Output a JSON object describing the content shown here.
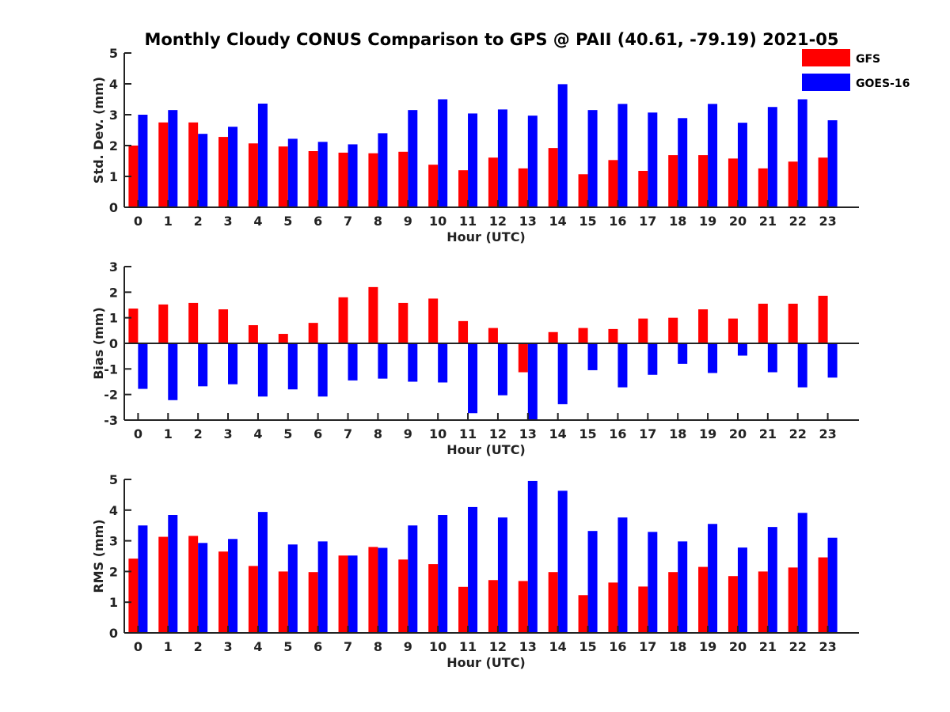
{
  "title": "Monthly Cloudy CONUS Comparison to GPS @ PAII (40.61, -79.19) 2021-05",
  "legend": {
    "placement": "top-right",
    "items": [
      {
        "name": "GFS",
        "color": "#ff0000"
      },
      {
        "name": "GOES-16",
        "color": "#0000ff"
      }
    ]
  },
  "chart_data": [
    {
      "type": "bar",
      "xlabel": "Hour (UTC)",
      "ylabel": "Std. Dev. (mm)",
      "ylim": [
        0,
        5
      ],
      "yticks": [
        0,
        1,
        2,
        3,
        4,
        5
      ],
      "categories": [
        "0",
        "1",
        "2",
        "3",
        "4",
        "5",
        "6",
        "7",
        "8",
        "9",
        "10",
        "11",
        "12",
        "13",
        "14",
        "15",
        "16",
        "17",
        "18",
        "19",
        "20",
        "21",
        "22",
        "23"
      ],
      "series": [
        {
          "name": "GFS",
          "color": "#ff0000",
          "values": [
            2.0,
            2.75,
            2.75,
            2.28,
            2.07,
            1.97,
            1.82,
            1.77,
            1.75,
            1.8,
            1.38,
            1.2,
            1.61,
            1.26,
            1.92,
            1.07,
            1.53,
            1.18,
            1.69,
            1.69,
            1.58,
            1.26,
            1.48,
            1.61
          ]
        },
        {
          "name": "GOES-16",
          "color": "#0000ff",
          "values": [
            3.0,
            3.15,
            2.38,
            2.61,
            3.36,
            2.22,
            2.12,
            2.04,
            2.4,
            3.15,
            3.5,
            3.04,
            3.17,
            2.97,
            3.99,
            3.15,
            3.35,
            3.07,
            2.89,
            3.35,
            2.74,
            3.25,
            3.5,
            2.82
          ]
        }
      ]
    },
    {
      "type": "bar",
      "xlabel": "Hour (UTC)",
      "ylabel": "Bias (mm)",
      "ylim": [
        -3,
        3
      ],
      "yticks": [
        -3,
        -2,
        -1,
        0,
        1,
        2,
        3
      ],
      "categories": [
        "0",
        "1",
        "2",
        "3",
        "4",
        "5",
        "6",
        "7",
        "8",
        "9",
        "10",
        "11",
        "12",
        "13",
        "14",
        "15",
        "16",
        "17",
        "18",
        "19",
        "20",
        "21",
        "22",
        "23"
      ],
      "series": [
        {
          "name": "GFS",
          "color": "#ff0000",
          "values": [
            1.36,
            1.52,
            1.58,
            1.33,
            0.71,
            0.37,
            0.8,
            1.8,
            2.2,
            1.58,
            1.75,
            0.87,
            0.6,
            -1.13,
            0.44,
            0.6,
            0.56,
            0.97,
            1.0,
            1.33,
            0.97,
            1.55,
            1.55,
            1.86
          ]
        },
        {
          "name": "GOES-16",
          "color": "#0000ff",
          "values": [
            -1.78,
            -2.22,
            -1.68,
            -1.6,
            -2.08,
            -1.8,
            -2.08,
            -1.45,
            -1.38,
            -1.5,
            -1.53,
            -2.73,
            -2.03,
            -3.0,
            -2.38,
            -1.05,
            -1.72,
            -1.23,
            -0.8,
            -1.16,
            -0.48,
            -1.13,
            -1.72,
            -1.34
          ]
        }
      ]
    },
    {
      "type": "bar",
      "xlabel": "Hour (UTC)",
      "ylabel": "RMS (mm)",
      "ylim": [
        0,
        5
      ],
      "yticks": [
        0,
        1,
        2,
        3,
        4,
        5
      ],
      "categories": [
        "0",
        "1",
        "2",
        "3",
        "4",
        "5",
        "6",
        "7",
        "8",
        "9",
        "10",
        "11",
        "12",
        "13",
        "14",
        "15",
        "16",
        "17",
        "18",
        "19",
        "20",
        "21",
        "22",
        "23"
      ],
      "series": [
        {
          "name": "GFS",
          "color": "#ff0000",
          "values": [
            2.42,
            3.13,
            3.16,
            2.65,
            2.18,
            2.0,
            1.98,
            2.52,
            2.8,
            2.39,
            2.24,
            1.5,
            1.72,
            1.69,
            1.98,
            1.23,
            1.64,
            1.51,
            1.98,
            2.15,
            1.85,
            2.0,
            2.13,
            2.46
          ]
        },
        {
          "name": "GOES-16",
          "color": "#0000ff",
          "values": [
            3.5,
            3.84,
            2.93,
            3.06,
            3.94,
            2.88,
            2.98,
            2.52,
            2.77,
            3.5,
            3.84,
            4.1,
            3.76,
            4.95,
            4.63,
            3.32,
            3.76,
            3.29,
            2.98,
            3.55,
            2.78,
            3.45,
            3.91,
            3.1
          ]
        }
      ]
    }
  ]
}
